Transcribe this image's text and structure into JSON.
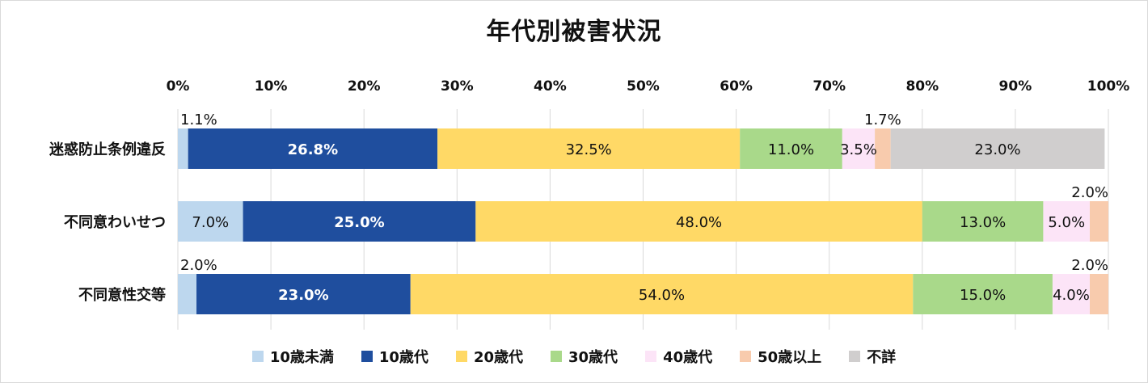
{
  "chart_data": {
    "type": "bar",
    "orientation": "horizontal",
    "stacked": true,
    "title": "年代別被害状況",
    "categories": [
      "迷惑防止条例違反",
      "不同意わいせつ",
      "不同意性交等"
    ],
    "xlim": [
      0,
      100
    ],
    "x_ticks": [
      0,
      10,
      20,
      30,
      40,
      50,
      60,
      70,
      80,
      90,
      100
    ],
    "x_tick_labels": [
      "0%",
      "10%",
      "20%",
      "30%",
      "40%",
      "50%",
      "60%",
      "70%",
      "80%",
      "90%",
      "100%"
    ],
    "legend_position": "bottom",
    "grid": "vertical",
    "series": [
      {
        "name": "10歳未満",
        "color": "#bdd7ee",
        "values": [
          1.1,
          7.0,
          2.0
        ],
        "labels": [
          "1.1%",
          "7.0%",
          "2.0%"
        ]
      },
      {
        "name": "10歳代",
        "color": "#1f4e9e",
        "values": [
          26.8,
          25.0,
          23.0
        ],
        "labels": [
          "26.8%",
          "25.0%",
          "23.0%"
        ]
      },
      {
        "name": "20歳代",
        "color": "#ffd966",
        "values": [
          32.5,
          48.0,
          54.0
        ],
        "labels": [
          "32.5%",
          "48.0%",
          "54.0%"
        ]
      },
      {
        "name": "30歳代",
        "color": "#a9d98a",
        "values": [
          11.0,
          13.0,
          15.0
        ],
        "labels": [
          "11.0%",
          "13.0%",
          "15.0%"
        ]
      },
      {
        "name": "40歳代",
        "color": "#fce4f7",
        "values": [
          3.5,
          5.0,
          4.0
        ],
        "labels": [
          "3.5%",
          "5.0%",
          "4.0%"
        ]
      },
      {
        "name": "50歳以上",
        "color": "#f8cbad",
        "values": [
          1.7,
          2.0,
          2.0
        ],
        "labels": [
          "1.7%",
          "2.0%",
          "2.0%"
        ]
      },
      {
        "name": "不詳",
        "color": "#d0cece",
        "values": [
          23.0,
          0,
          0
        ],
        "labels": [
          "23.0%",
          "",
          ""
        ]
      }
    ]
  }
}
